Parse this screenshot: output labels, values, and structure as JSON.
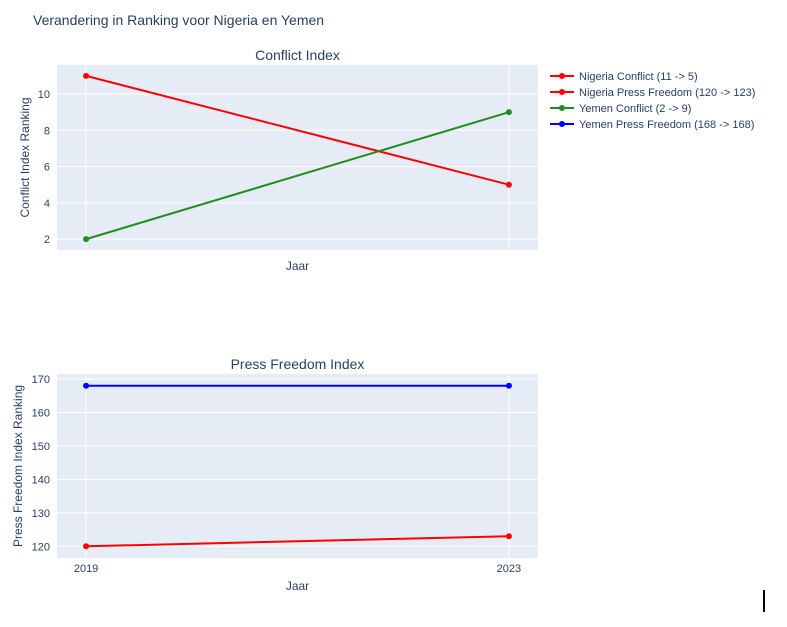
{
  "title": "Verandering in Ranking voor Nigeria en Yemen",
  "colors": {
    "plot_bg": "#e5ecf6",
    "grid": "#ffffff",
    "text": "#2a3f5f",
    "nigeria": "#ff0000",
    "yemen_conflict": "#228b22",
    "yemen_press": "#0000ff"
  },
  "legend": {
    "placement": "top-right",
    "items": [
      {
        "label": "Nigeria Conflict (11 -> 5)",
        "color": "#ff0000"
      },
      {
        "label": "Nigeria Press Freedom (120 -> 123)",
        "color": "#ff0000"
      },
      {
        "label": "Yemen Conflict (2 -> 9)",
        "color": "#228b22"
      },
      {
        "label": "Yemen Press Freedom (168 -> 168)",
        "color": "#0000ff"
      }
    ]
  },
  "chart_data": [
    {
      "type": "line",
      "title": "Conflict Index",
      "xlabel": "Jaar",
      "ylabel": "Conflict Index Ranking",
      "x": [
        2019,
        2023
      ],
      "x_ticks_shown": false,
      "ylim": [
        1.4,
        11.6
      ],
      "yticks": [
        2,
        4,
        6,
        8,
        10
      ],
      "grid": true,
      "series": [
        {
          "name": "Nigeria Conflict (11 -> 5)",
          "color": "#ff0000",
          "values": [
            11,
            5
          ]
        },
        {
          "name": "Yemen Conflict (2 -> 9)",
          "color": "#228b22",
          "values": [
            2,
            9
          ]
        }
      ]
    },
    {
      "type": "line",
      "title": "Press Freedom Index",
      "xlabel": "Jaar",
      "ylabel": "Press Freedom Index Ranking",
      "x": [
        2019,
        2023
      ],
      "xticks": [
        "2019",
        "2023"
      ],
      "ylim": [
        116.5,
        171.5
      ],
      "yticks": [
        120,
        130,
        140,
        150,
        160,
        170
      ],
      "grid": true,
      "series": [
        {
          "name": "Nigeria Press Freedom (120 -> 123)",
          "color": "#ff0000",
          "values": [
            120,
            123
          ]
        },
        {
          "name": "Yemen Press Freedom (168 -> 168)",
          "color": "#0000ff",
          "values": [
            168,
            168
          ]
        }
      ]
    }
  ]
}
